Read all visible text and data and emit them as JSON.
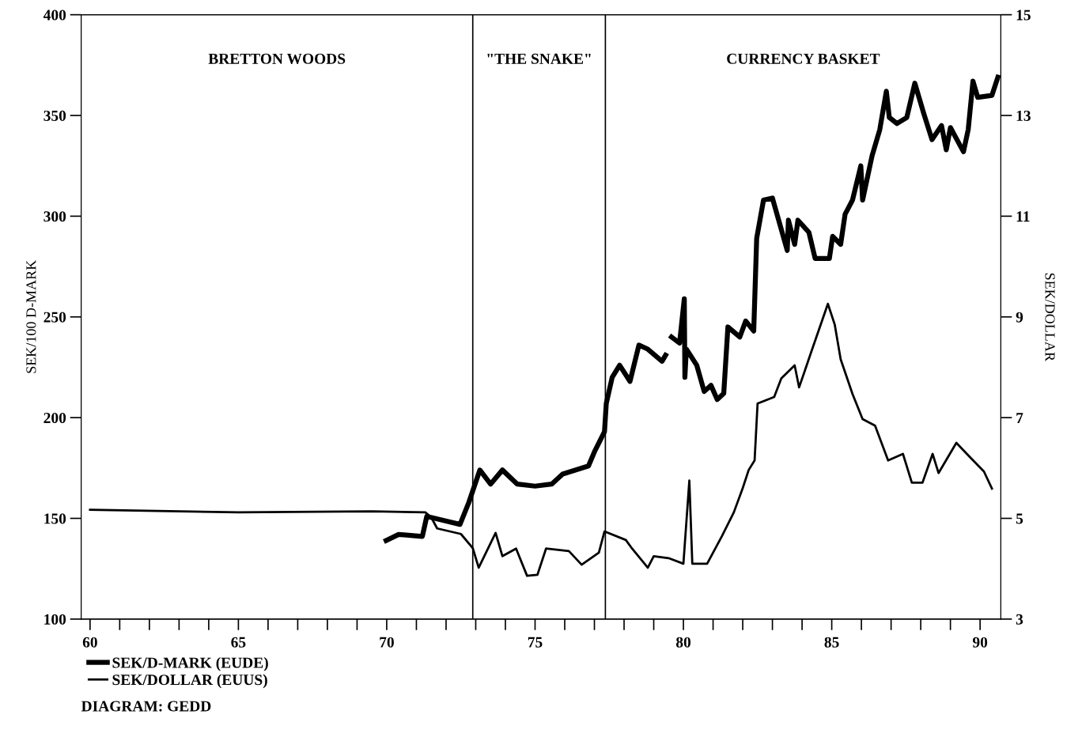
{
  "chart_data": {
    "type": "line",
    "ylabel": "SEK/100 D-MARK",
    "y2label": "SEK/DOLLAR",
    "xlim": [
      59.7,
      90.7
    ],
    "xticks": [
      60,
      {
        "value": 61,
        "label": null
      },
      {
        "value": 62,
        "label": null
      },
      {
        "value": 63,
        "label": null
      },
      {
        "value": 64,
        "label": null
      },
      65,
      {
        "value": 66,
        "label": null
      },
      {
        "value": 67,
        "label": null
      },
      {
        "value": 68,
        "label": null
      },
      {
        "value": 69,
        "label": null
      },
      70,
      {
        "value": 71,
        "label": null
      },
      {
        "value": 72,
        "label": null
      },
      {
        "value": 73,
        "label": null
      },
      {
        "value": 74,
        "label": null
      },
      75,
      {
        "value": 76,
        "label": null
      },
      {
        "value": 77,
        "label": null
      },
      {
        "value": 78,
        "label": null
      },
      {
        "value": 79,
        "label": null
      },
      80,
      {
        "value": 81,
        "label": null
      },
      {
        "value": 82,
        "label": null
      },
      {
        "value": 83,
        "label": null
      },
      {
        "value": 84,
        "label": null
      },
      85,
      {
        "value": 86,
        "label": null
      },
      {
        "value": 87,
        "label": null
      },
      {
        "value": 88,
        "label": null
      },
      {
        "value": 89,
        "label": null
      },
      90
    ],
    "ylim": [
      100,
      400
    ],
    "yticks": [
      100,
      150,
      200,
      250,
      300,
      350,
      400
    ],
    "y2lim": [
      3,
      15
    ],
    "y2ticks": [
      3,
      5,
      7,
      9,
      11,
      13,
      15
    ],
    "grid": false,
    "legend": "bottom left",
    "marker": "none",
    "line_style": "solid",
    "series": [
      {
        "name": "SEK/D-MARK (EUDE)",
        "color": "#000000",
        "x": [
          69.98,
          70.4,
          71.2,
          71.35,
          71.9,
          72.47,
          72.77,
          73.14,
          73.5,
          73.9,
          74.4,
          75.0,
          75.56,
          75.93,
          76.8,
          77.0,
          77.34,
          77.4,
          77.6,
          77.85,
          78.2,
          78.5,
          78.8,
          79.28,
          79.4,
          79.5,
          79.6,
          79.87,
          80.03,
          80.05,
          80.1,
          80.45,
          80.7,
          80.93,
          81.14,
          81.36,
          81.5,
          81.9,
          82.1,
          82.37,
          82.47,
          82.7,
          83.0,
          83.5,
          83.54,
          83.75,
          83.86,
          84.23,
          84.44,
          84.92,
          85.03,
          85.3,
          85.45,
          85.7,
          85.98,
          86.04,
          86.36,
          86.62,
          86.84,
          86.94,
          87.2,
          87.53,
          87.8,
          88.1,
          88.38,
          88.7,
          88.86,
          89.0,
          89.44,
          89.6,
          89.76,
          89.92,
          90.4,
          90.6
        ],
        "values": [
          139,
          142,
          141,
          151,
          149,
          147,
          158,
          174,
          167,
          174,
          167,
          166,
          167,
          172,
          176,
          183,
          193,
          207,
          220,
          226,
          218,
          236,
          234,
          228,
          231,
          null,
          240,
          237,
          259,
          220,
          234,
          226,
          213,
          216,
          209,
          212,
          245,
          240,
          248,
          243,
          289,
          308,
          309,
          283,
          298,
          286,
          298,
          292,
          279,
          279,
          290,
          286,
          301,
          308,
          325,
          308,
          330,
          343,
          362,
          349,
          346,
          349,
          366,
          351,
          338,
          345,
          333,
          344,
          332,
          343,
          367,
          359,
          360,
          369
        ]
      },
      {
        "name": "SEK/DOLLAR (EUUS)",
        "color": "#000000",
        "axis": "y2",
        "x": [
          60,
          65,
          69.5,
          71.3,
          71.5,
          71.7,
          72.5,
          72.9,
          73.1,
          73.67,
          73.9,
          74.36,
          74.73,
          75.08,
          75.37,
          76.14,
          76.57,
          77.15,
          77.34,
          78.06,
          78.27,
          78.8,
          79.0,
          79.5,
          80.0,
          80.2,
          80.3,
          80.8,
          81.3,
          81.7,
          82.0,
          82.2,
          82.4,
          82.5,
          83.06,
          83.3,
          83.75,
          83.9,
          84.3,
          84.87,
          85.1,
          85.3,
          85.7,
          86.04,
          86.46,
          86.9,
          87.4,
          87.7,
          88.06,
          88.4,
          88.6,
          89.2,
          89.65,
          90.13,
          90.4
        ],
        "values": [
          5.17,
          5.12,
          5.14,
          5.12,
          5.02,
          4.8,
          4.69,
          4.41,
          4.02,
          4.71,
          4.25,
          4.4,
          3.86,
          3.88,
          4.4,
          4.35,
          4.08,
          4.32,
          4.74,
          4.57,
          4.4,
          4.02,
          4.25,
          4.21,
          4.1,
          5.75,
          4.1,
          4.1,
          4.65,
          5.12,
          5.6,
          5.96,
          6.15,
          7.28,
          7.41,
          7.78,
          8.04,
          7.6,
          8.29,
          9.26,
          8.85,
          8.16,
          7.47,
          6.97,
          6.84,
          6.15,
          6.28,
          5.71,
          5.71,
          6.28,
          5.9,
          6.5,
          6.22,
          5.93,
          5.59
        ]
      }
    ],
    "ref_lines": [
      {
        "axis": "x",
        "value": 72.9,
        "color": "#000000"
      },
      {
        "axis": "x",
        "value": 77.37,
        "color": "#000000"
      }
    ],
    "annotations": [
      "BRETTON WOODS",
      "\"THE SNAKE\"",
      "CURRENCY BASKET",
      "DIAGRAM: GEDD"
    ]
  }
}
